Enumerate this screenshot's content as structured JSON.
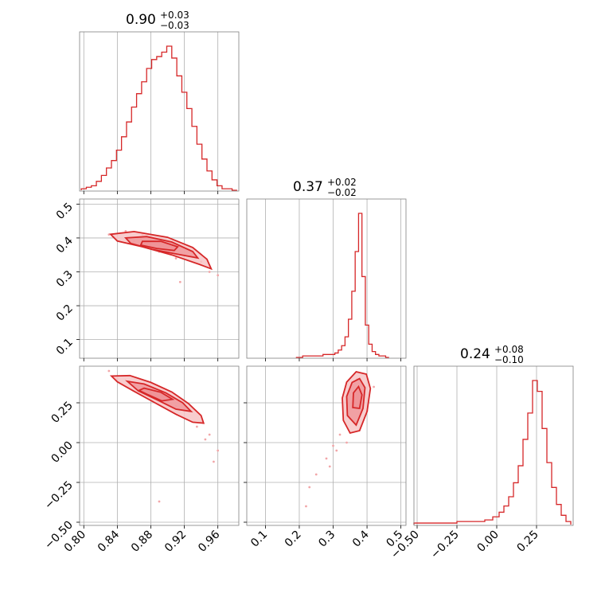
{
  "colors": {
    "accent": "#d62728",
    "grid": "#b0b0b0",
    "frame": "#808080",
    "fill_light": "#f7c4c6",
    "fill_dark": "#ee8f93"
  },
  "chart_data": {
    "type": "corner",
    "grid": true,
    "parameters": [
      {
        "index": 0,
        "range": [
          0.795,
          0.985
        ],
        "ticks": [
          0.8,
          0.84,
          0.88,
          0.92,
          0.96
        ],
        "tick_labels": [
          "0.80",
          "0.84",
          "0.88",
          "0.92",
          "0.96"
        ],
        "summary": {
          "median": "0.90",
          "plus": "+0.03",
          "minus": "−0.03"
        }
      },
      {
        "index": 1,
        "range": [
          0.045,
          0.515
        ],
        "ticks": [
          0.1,
          0.2,
          0.3,
          0.4,
          0.5
        ],
        "tick_labels": [
          "0.1",
          "0.2",
          "0.3",
          "0.4",
          "0.5"
        ],
        "summary": {
          "median": "0.37",
          "plus": "+0.02",
          "minus": "−0.02"
        }
      },
      {
        "index": 2,
        "range": [
          -0.52,
          0.48
        ],
        "ticks": [
          -0.5,
          -0.25,
          0.0,
          0.25
        ],
        "tick_labels": [
          "−0.50",
          "−0.25",
          "0.00",
          "0.25"
        ],
        "summary": {
          "median": "0.24",
          "plus": "+0.08",
          "minus": "−0.10"
        }
      }
    ],
    "histograms": [
      {
        "param": 0,
        "bin_centers": [
          0.8,
          0.806,
          0.812,
          0.818,
          0.824,
          0.83,
          0.836,
          0.842,
          0.848,
          0.854,
          0.86,
          0.866,
          0.872,
          0.878,
          0.884,
          0.89,
          0.896,
          0.902,
          0.908,
          0.914,
          0.92,
          0.926,
          0.932,
          0.938,
          0.944,
          0.95,
          0.956,
          0.962,
          0.968,
          0.974,
          0.98
        ],
        "counts": [
          0.01,
          0.02,
          0.03,
          0.06,
          0.1,
          0.15,
          0.2,
          0.27,
          0.36,
          0.46,
          0.56,
          0.65,
          0.73,
          0.82,
          0.88,
          0.9,
          0.93,
          0.97,
          0.89,
          0.77,
          0.66,
          0.55,
          0.43,
          0.31,
          0.21,
          0.13,
          0.07,
          0.03,
          0.01,
          0.01,
          0.0
        ]
      },
      {
        "param": 1,
        "bin_centers": [
          0.2,
          0.22,
          0.24,
          0.26,
          0.28,
          0.3,
          0.31,
          0.32,
          0.33,
          0.34,
          0.35,
          0.36,
          0.37,
          0.38,
          0.39,
          0.4,
          0.41,
          0.42,
          0.43,
          0.44,
          0.45,
          0.46
        ],
        "counts": [
          0.0,
          0.01,
          0.01,
          0.01,
          0.02,
          0.02,
          0.03,
          0.05,
          0.08,
          0.14,
          0.26,
          0.45,
          0.72,
          0.98,
          0.55,
          0.22,
          0.09,
          0.04,
          0.02,
          0.01,
          0.01,
          0.0
        ]
      },
      {
        "param": 2,
        "bin_centers": [
          -0.5,
          -0.4,
          -0.3,
          -0.2,
          -0.1,
          -0.05,
          0.0,
          0.03,
          0.06,
          0.09,
          0.12,
          0.15,
          0.18,
          0.21,
          0.24,
          0.27,
          0.3,
          0.33,
          0.36,
          0.39,
          0.42,
          0.45
        ],
        "counts": [
          0.01,
          0.01,
          0.01,
          0.02,
          0.02,
          0.03,
          0.05,
          0.08,
          0.12,
          0.18,
          0.27,
          0.38,
          0.55,
          0.72,
          0.93,
          0.86,
          0.62,
          0.4,
          0.24,
          0.13,
          0.06,
          0.02
        ]
      }
    ],
    "pairs": [
      {
        "x_param": 0,
        "y_param": 1,
        "contours": [
          {
            "level": "outer",
            "points": [
              [
                0.832,
                0.411
              ],
              [
                0.86,
                0.419
              ],
              [
                0.9,
                0.402
              ],
              [
                0.93,
                0.372
              ],
              [
                0.947,
                0.337
              ],
              [
                0.952,
                0.309
              ],
              [
                0.938,
                0.322
              ],
              [
                0.905,
                0.35
              ],
              [
                0.87,
                0.374
              ],
              [
                0.84,
                0.391
              ]
            ]
          },
          {
            "level": "middle",
            "points": [
              [
                0.85,
                0.4
              ],
              [
                0.875,
                0.404
              ],
              [
                0.905,
                0.388
              ],
              [
                0.93,
                0.36
              ],
              [
                0.936,
                0.341
              ],
              [
                0.912,
                0.352
              ],
              [
                0.882,
                0.366
              ],
              [
                0.856,
                0.384
              ]
            ]
          },
          {
            "level": "inner",
            "points": [
              [
                0.87,
                0.39
              ],
              [
                0.892,
                0.39
              ],
              [
                0.912,
                0.374
              ],
              [
                0.908,
                0.363
              ],
              [
                0.887,
                0.369
              ],
              [
                0.868,
                0.379
              ]
            ]
          }
        ],
        "samples": [
          [
            0.84,
            0.4
          ],
          [
            0.86,
            0.39
          ],
          [
            0.88,
            0.38
          ],
          [
            0.9,
            0.37
          ],
          [
            0.92,
            0.35
          ],
          [
            0.94,
            0.33
          ],
          [
            0.95,
            0.3
          ],
          [
            0.85,
            0.42
          ],
          [
            0.87,
            0.41
          ],
          [
            0.91,
            0.34
          ],
          [
            0.93,
            0.36
          ],
          [
            0.89,
            0.36
          ],
          [
            0.83,
            0.41
          ],
          [
            0.96,
            0.29
          ],
          [
            0.915,
            0.27
          ]
        ]
      },
      {
        "x_param": 0,
        "y_param": 2,
        "contours": [
          {
            "level": "outer",
            "points": [
              [
                0.833,
                0.418
              ],
              [
                0.855,
                0.421
              ],
              [
                0.88,
                0.378
              ],
              [
                0.905,
                0.318
              ],
              [
                0.925,
                0.245
              ],
              [
                0.94,
                0.17
              ],
              [
                0.943,
                0.122
              ],
              [
                0.93,
                0.128
              ],
              [
                0.91,
                0.178
              ],
              [
                0.885,
                0.25
              ],
              [
                0.86,
                0.322
              ],
              [
                0.84,
                0.382
              ]
            ]
          },
          {
            "level": "middle",
            "points": [
              [
                0.852,
                0.385
              ],
              [
                0.872,
                0.368
              ],
              [
                0.898,
                0.312
              ],
              [
                0.918,
                0.25
              ],
              [
                0.928,
                0.196
              ],
              [
                0.91,
                0.21
              ],
              [
                0.89,
                0.262
              ],
              [
                0.865,
                0.325
              ]
            ]
          },
          {
            "level": "inner",
            "points": [
              [
                0.872,
                0.342
              ],
              [
                0.892,
                0.316
              ],
              [
                0.906,
                0.272
              ],
              [
                0.893,
                0.262
              ],
              [
                0.877,
                0.3
              ],
              [
                0.866,
                0.328
              ]
            ]
          }
        ],
        "samples": [
          [
            0.84,
            0.4
          ],
          [
            0.86,
            0.36
          ],
          [
            0.88,
            0.31
          ],
          [
            0.9,
            0.26
          ],
          [
            0.92,
            0.2
          ],
          [
            0.94,
            0.13
          ],
          [
            0.95,
            0.05
          ],
          [
            0.96,
            -0.05
          ],
          [
            0.955,
            -0.12
          ],
          [
            0.89,
            -0.37
          ],
          [
            0.83,
            0.45
          ],
          [
            0.945,
            0.02
          ],
          [
            0.935,
            0.1
          ],
          [
            0.87,
            0.35
          ],
          [
            0.91,
            0.23
          ]
        ]
      },
      {
        "x_param": 1,
        "y_param": 2,
        "contours": [
          {
            "level": "outer",
            "points": [
              [
                0.33,
                0.14
              ],
              [
                0.327,
                0.28
              ],
              [
                0.34,
                0.38
              ],
              [
                0.368,
                0.445
              ],
              [
                0.398,
                0.43
              ],
              [
                0.41,
                0.34
              ],
              [
                0.4,
                0.195
              ],
              [
                0.378,
                0.075
              ],
              [
                0.35,
                0.06
              ]
            ]
          },
          {
            "level": "middle",
            "points": [
              [
                0.342,
                0.17
              ],
              [
                0.34,
                0.29
              ],
              [
                0.356,
                0.378
              ],
              [
                0.378,
                0.402
              ],
              [
                0.394,
                0.345
              ],
              [
                0.388,
                0.215
              ],
              [
                0.368,
                0.11
              ]
            ]
          },
          {
            "level": "inner",
            "points": [
              [
                0.358,
                0.22
              ],
              [
                0.36,
                0.312
              ],
              [
                0.375,
                0.352
              ],
              [
                0.385,
                0.3
              ],
              [
                0.378,
                0.215
              ]
            ]
          }
        ],
        "samples": [
          [
            0.36,
            0.25
          ],
          [
            0.38,
            0.3
          ],
          [
            0.35,
            0.15
          ],
          [
            0.4,
            0.2
          ],
          [
            0.32,
            0.05
          ],
          [
            0.3,
            -0.02
          ],
          [
            0.28,
            -0.1
          ],
          [
            0.25,
            -0.2
          ],
          [
            0.23,
            -0.28
          ],
          [
            0.42,
            0.35
          ],
          [
            0.37,
            0.4
          ],
          [
            0.34,
            0.0
          ],
          [
            0.31,
            -0.05
          ],
          [
            0.22,
            -0.4
          ],
          [
            0.29,
            -0.15
          ]
        ]
      }
    ]
  }
}
